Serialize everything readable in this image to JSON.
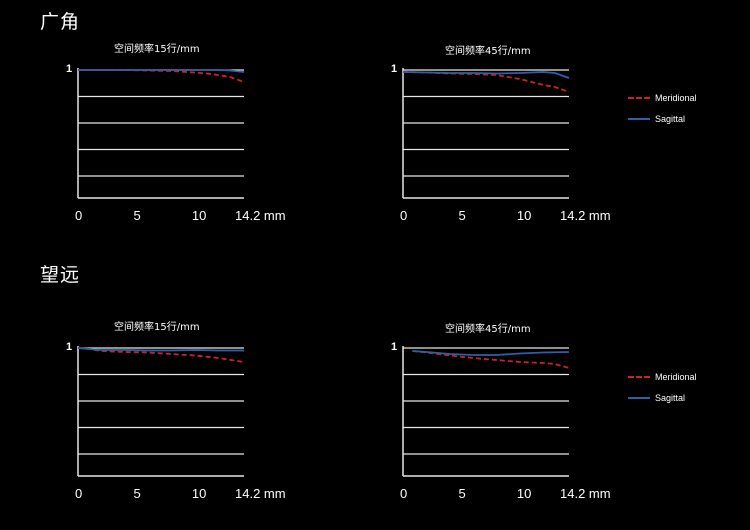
{
  "sections": [
    {
      "title": "广角"
    },
    {
      "title": "望远"
    }
  ],
  "legend": {
    "meridional": {
      "label": "Meridional",
      "color": "#cc2222",
      "style": "dashed"
    },
    "sagittal": {
      "label": "Sagittal",
      "color": "#2f5fa8",
      "style": "solid"
    }
  },
  "chart_data": [
    {
      "type": "line",
      "section": "广角",
      "title": "空间频率15行/mm",
      "xticks": [
        "0",
        "5",
        "10",
        "14.2 mm"
      ],
      "xlim": [
        0,
        14.2
      ],
      "ytick": "1",
      "ylim": [
        0,
        1
      ],
      "grid": true,
      "series": [
        {
          "name": "Meridional",
          "x": [
            0,
            2,
            4,
            6,
            8,
            10,
            11,
            12,
            13,
            14.2
          ],
          "y": [
            1.0,
            1.0,
            1.0,
            0.995,
            0.99,
            0.975,
            0.965,
            0.95,
            0.93,
            0.88
          ]
        },
        {
          "name": "Sagittal",
          "x": [
            0,
            2,
            4,
            6,
            8,
            10,
            12,
            13,
            14.2
          ],
          "y": [
            1.0,
            1.0,
            1.0,
            1.0,
            1.0,
            1.0,
            1.0,
            0.995,
            0.98
          ]
        }
      ]
    },
    {
      "type": "line",
      "section": "广角",
      "title": "空间频率45行/mm",
      "xticks": [
        "0",
        "5",
        "10",
        "14.2 mm"
      ],
      "xlim": [
        0,
        14.2
      ],
      "ytick": "1",
      "ylim": [
        0,
        1
      ],
      "grid": true,
      "series": [
        {
          "name": "Meridional",
          "x": [
            0,
            2,
            4,
            6,
            8,
            9,
            10,
            11,
            12,
            13,
            14.2
          ],
          "y": [
            0.98,
            0.975,
            0.965,
            0.96,
            0.95,
            0.93,
            0.91,
            0.88,
            0.85,
            0.83,
            0.78
          ]
        },
        {
          "name": "Sagittal",
          "x": [
            0,
            2,
            4,
            6,
            8,
            10,
            12,
            13,
            14.2
          ],
          "y": [
            0.98,
            0.975,
            0.97,
            0.97,
            0.965,
            0.97,
            0.98,
            0.97,
            0.92
          ]
        }
      ]
    },
    {
      "type": "line",
      "section": "望远",
      "title": "空间频率15行/mm",
      "xticks": [
        "0",
        "5",
        "10",
        "14.2 mm"
      ],
      "xlim": [
        0,
        14.2
      ],
      "ytick": "1",
      "ylim": [
        0,
        1
      ],
      "grid": true,
      "series": [
        {
          "name": "Meridional",
          "x": [
            0,
            1,
            2,
            4,
            6,
            8,
            10,
            12,
            14.2
          ],
          "y": [
            1.0,
            0.99,
            0.97,
            0.96,
            0.955,
            0.94,
            0.925,
            0.9,
            0.86
          ]
        },
        {
          "name": "Sagittal",
          "x": [
            0,
            2,
            4,
            6,
            8,
            10,
            12,
            14.2
          ],
          "y": [
            1.0,
            0.98,
            0.98,
            0.975,
            0.975,
            0.98,
            0.975,
            0.975
          ]
        }
      ]
    },
    {
      "type": "line",
      "section": "望远",
      "title": "空间频率45行/mm",
      "xticks": [
        "0",
        "5",
        "10",
        "14.2 mm"
      ],
      "xlim": [
        0,
        14.2
      ],
      "ytick": "1",
      "ylim": [
        0,
        1
      ],
      "grid": true,
      "series": [
        {
          "name": "Meridional",
          "x": [
            0.8,
            2,
            4,
            6,
            8,
            10,
            12,
            13,
            14.2
          ],
          "y": [
            0.97,
            0.955,
            0.925,
            0.9,
            0.88,
            0.86,
            0.85,
            0.84,
            0.8
          ]
        },
        {
          "name": "Sagittal",
          "x": [
            0.8,
            2,
            4,
            6,
            8,
            10,
            12,
            14.2
          ],
          "y": [
            0.97,
            0.96,
            0.94,
            0.93,
            0.93,
            0.945,
            0.955,
            0.96
          ]
        }
      ]
    }
  ]
}
